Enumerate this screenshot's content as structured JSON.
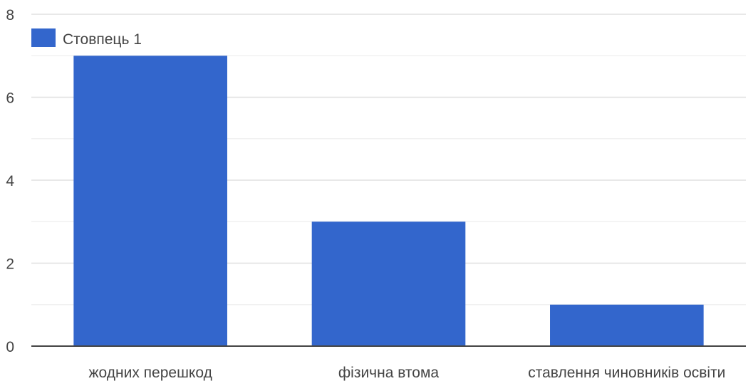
{
  "chart_data": {
    "type": "bar",
    "categories": [
      "жодних перешкод",
      "фізична втома",
      "ставлення чиновників освіти"
    ],
    "series": [
      {
        "name": "Стовпець 1",
        "values": [
          7,
          3,
          1
        ],
        "color": "#3366cc"
      }
    ],
    "ylim": [
      0,
      8
    ],
    "yticks": [
      0,
      2,
      4,
      6,
      8
    ],
    "grid": true,
    "legend_position": "top-left"
  }
}
